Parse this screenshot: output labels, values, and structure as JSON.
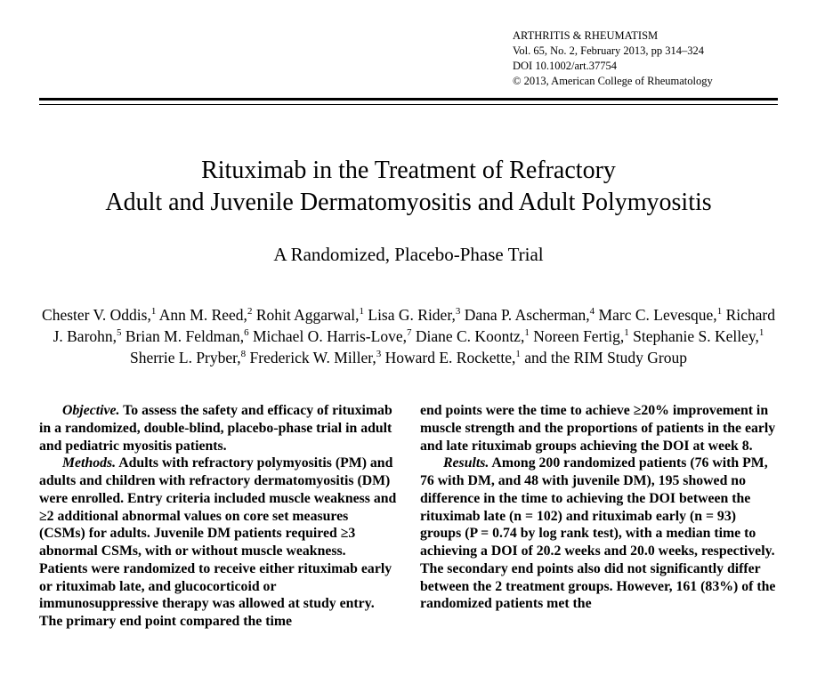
{
  "journal": {
    "name": "ARTHRITIS & RHEUMATISM",
    "issue": "Vol. 65, No. 2, February 2013, pp 314–324",
    "doi": "DOI 10.1002/art.37754",
    "copyright": "© 2013, American College of Rheumatology"
  },
  "rules": {
    "thick_color": "#000000",
    "thin_color": "#000000"
  },
  "title": {
    "line1": "Rituximab in the Treatment of Refractory",
    "line2": "Adult and Juvenile Dermatomyositis and Adult Polymyositis"
  },
  "subtitle": "A Randomized, Placebo-Phase Trial",
  "authors_html": "Chester V. Oddis,<sup>1</sup> Ann M. Reed,<sup>2</sup> Rohit Aggarwal,<sup>1</sup> Lisa G. Rider,<sup>3</sup> Dana P. Ascherman,<sup>4</sup> Marc C. Levesque,<sup>1</sup> Richard J. Barohn,<sup>5</sup> Brian M. Feldman,<sup>6</sup> Michael O. Harris-Love,<sup>7</sup> Diane C. Koontz,<sup>1</sup> Noreen Fertig,<sup>1</sup> Stephanie S. Kelley,<sup>1</sup> Sherrie L. Pryber,<sup>8</sup> Frederick W. Miller,<sup>3</sup> Howard E. Rockette,<sup>1</sup> and the RIM Study Group",
  "abstract": {
    "objective_label": "Objective.",
    "objective_text": " To assess the safety and efficacy of rituximab in a randomized, double-blind, placebo-phase trial in adult and pediatric myositis patients.",
    "methods_label": "Methods.",
    "methods_text": " Adults with refractory polymyositis (PM) and adults and children with refractory dermatomyositis (DM) were enrolled. Entry criteria included muscle weakness and ≥2 additional abnormal values on core set measures (CSMs) for adults. Juvenile DM patients required ≥3 abnormal CSMs, with or without muscle weakness. Patients were randomized to receive either rituximab early or rituximab late, and glucocorticoid or immunosuppressive therapy was allowed at study entry. The primary end point compared the time",
    "col2_top_text": "end points were the time to achieve ≥20% improvement in muscle strength and the proportions of patients in the early and late rituximab groups achieving the DOI at week 8.",
    "results_label": "Results.",
    "results_text": " Among 200 randomized patients (76 with PM, 76 with DM, and 48 with juvenile DM), 195 showed no difference in the time to achieving the DOI between the rituximab late (n = 102) and rituximab early (n = 93) groups (P = 0.74 by log rank test), with a median time to achieving a DOI of 20.2 weeks and 20.0 weeks, respectively. The secondary end points also did not significantly differ between the 2 treatment groups. However, 161 (83%) of the randomized patients met the"
  }
}
